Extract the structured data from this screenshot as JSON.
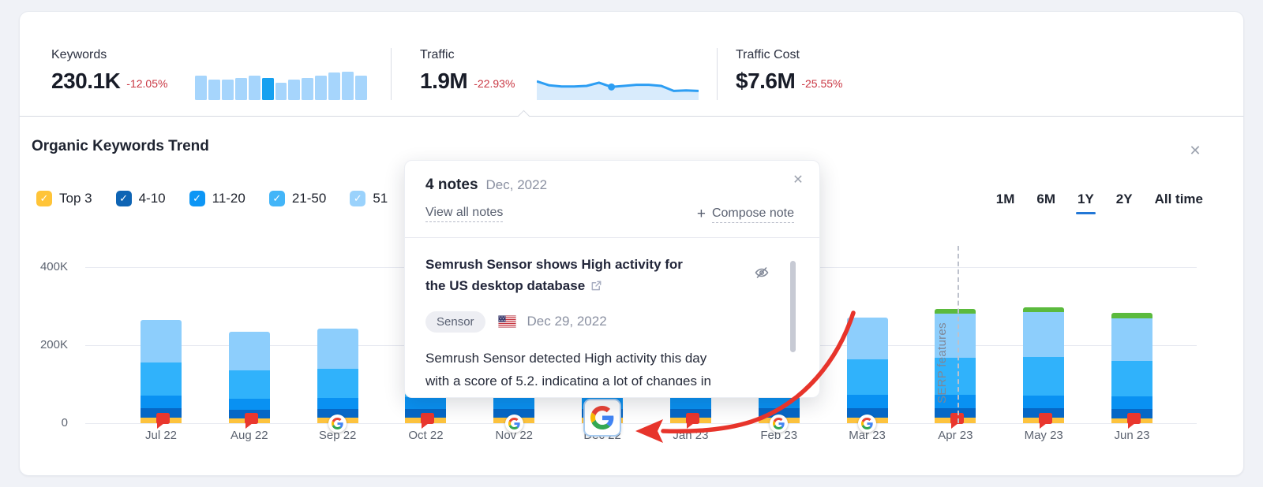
{
  "colors": {
    "negative": "#C93642",
    "accent_blue": "#2277D6",
    "arrow_red": "#E7342B",
    "flag_red": "#E9372E",
    "spark_bar": "#A6D5FC",
    "spark_bar_highlight": "#17A1F0",
    "spark_line": "#2D9EF3",
    "spark_fill": "#D8EBFC"
  },
  "icons": {
    "close": "✕",
    "check": "✓",
    "plus": "+"
  },
  "metrics": {
    "keywords": {
      "label": "Keywords",
      "value": "230.1K",
      "change": "-12.05%",
      "spark": {
        "values": [
          85,
          73,
          73,
          78,
          85,
          78,
          62,
          73,
          78,
          85,
          97,
          100,
          85
        ],
        "highlight_index": 5
      }
    },
    "traffic": {
      "label": "Traffic",
      "value": "1.9M",
      "change": "-22.93%",
      "spark": {
        "y_percents": [
          30,
          45,
          49,
          49,
          47,
          35,
          51,
          47,
          43,
          43,
          47,
          66,
          64,
          66
        ],
        "dot_index": 6
      }
    },
    "traffic_cost": {
      "label": "Traffic Cost",
      "value": "$7.6M",
      "change": "-25.55%"
    }
  },
  "panel": {
    "title": "Organic Keywords Trend",
    "legend": [
      {
        "label": "Top 3",
        "color": "#FFC438"
      },
      {
        "label": "4-10",
        "color": "#0E64B4"
      },
      {
        "label": "11-20",
        "color": "#0D96F5"
      },
      {
        "label": "21-50",
        "color": "#43B5F8"
      },
      {
        "label": "51",
        "color": "#9AD2FC"
      }
    ],
    "ranges": [
      {
        "label": "1M",
        "active": false
      },
      {
        "label": "6M",
        "active": false
      },
      {
        "label": "1Y",
        "active": true
      },
      {
        "label": "2Y",
        "active": false
      },
      {
        "label": "All time",
        "active": false
      }
    ]
  },
  "chart_data": {
    "type": "bar",
    "stacked": true,
    "title": "Organic Keywords Trend",
    "categories": [
      "Jul 22",
      "Aug 22",
      "Sep 22",
      "Oct 22",
      "Nov 22",
      "Dec 22",
      "Jan 23",
      "Feb 23",
      "Mar 23",
      "Apr 23",
      "May 23",
      "Jun 23"
    ],
    "unit": "K keywords",
    "series": [
      {
        "name": "Top 3",
        "color": "#FDC33E",
        "values": [
          14,
          13,
          14,
          14,
          14,
          14,
          14,
          14,
          14,
          14,
          14,
          13
        ]
      },
      {
        "name": "4-10",
        "color": "#0667C6",
        "values": [
          24,
          22,
          22,
          23,
          23,
          23,
          23,
          24,
          24,
          24,
          24,
          23
        ]
      },
      {
        "name": "11-20",
        "color": "#0991F2",
        "values": [
          33,
          28,
          28,
          30,
          30,
          30,
          31,
          32,
          35,
          34,
          33,
          32
        ]
      },
      {
        "name": "21-50",
        "color": "#30B2FB",
        "values": [
          85,
          72,
          76,
          78,
          79,
          80,
          82,
          84,
          90,
          95,
          98,
          92
        ]
      },
      {
        "name": "51",
        "color": "#8DCEFC",
        "values": [
          109,
          100,
          103,
          105,
          106,
          108,
          110,
          111,
          107,
          114,
          115,
          109
        ]
      },
      {
        "name": "SERP features",
        "color": "#5BBA3D",
        "values": [
          0,
          0,
          0,
          0,
          0,
          0,
          0,
          0,
          0,
          12,
          13,
          14
        ]
      }
    ],
    "y_ticks": [
      {
        "label": "400K",
        "value": 400
      },
      {
        "label": "200K",
        "value": 200
      },
      {
        "label": "0",
        "value": 0
      }
    ],
    "ylim": [
      0,
      420
    ],
    "grid": true,
    "legend_position": "top",
    "markers": [
      "flag",
      "flag",
      "google",
      "flag",
      "google",
      "google-selected",
      "flag",
      "google",
      "google",
      "flag",
      "flag",
      "flag"
    ],
    "serp_annotation": {
      "label": "SERP features",
      "category": "Apr 23"
    }
  },
  "popup": {
    "count_label": "4 notes",
    "date_label": "Dec, 2022",
    "view_all": "View all notes",
    "compose": "Compose note",
    "note": {
      "title_lines": [
        "Semrush Sensor shows High activity for",
        "the US desktop database"
      ],
      "tag": "Sensor",
      "date": "Dec 29, 2022",
      "body_lines": [
        "Semrush Sensor detected High activity this day",
        "with a score of 5.2, indicating a lot of changes in"
      ]
    }
  }
}
